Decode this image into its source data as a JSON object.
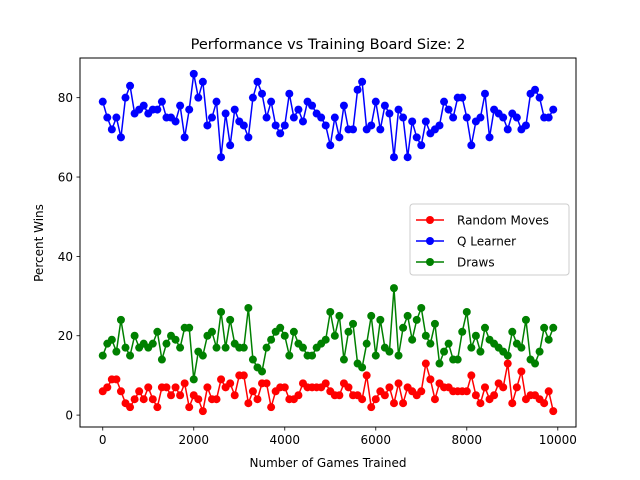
{
  "chart_data": {
    "type": "line",
    "title": "Performance vs Training Board Size: 2",
    "xlabel": "Number of Games Trained",
    "ylabel": "Percent Wins",
    "xlim": [
      -500,
      10400
    ],
    "ylim": [
      -3,
      90
    ],
    "xticks": [
      0,
      2000,
      4000,
      6000,
      8000,
      10000
    ],
    "yticks": [
      0,
      20,
      40,
      60,
      80
    ],
    "grid": false,
    "legend_position": "center-right",
    "x": [
      0,
      100,
      200,
      300,
      400,
      500,
      600,
      700,
      800,
      900,
      1000,
      1100,
      1200,
      1300,
      1400,
      1500,
      1600,
      1700,
      1800,
      1900,
      2000,
      2100,
      2200,
      2300,
      2400,
      2500,
      2600,
      2700,
      2800,
      2900,
      3000,
      3100,
      3200,
      3300,
      3400,
      3500,
      3600,
      3700,
      3800,
      3900,
      4000,
      4100,
      4200,
      4300,
      4400,
      4500,
      4600,
      4700,
      4800,
      4900,
      5000,
      5100,
      5200,
      5300,
      5400,
      5500,
      5600,
      5700,
      5800,
      5900,
      6000,
      6100,
      6200,
      6300,
      6400,
      6500,
      6600,
      6700,
      6800,
      6900,
      7000,
      7100,
      7200,
      7300,
      7400,
      7500,
      7600,
      7700,
      7800,
      7900,
      8000,
      8100,
      8200,
      8300,
      8400,
      8500,
      8600,
      8700,
      8800,
      8900,
      9000,
      9100,
      9200,
      9300,
      9400,
      9500,
      9600,
      9700,
      9800,
      9900
    ],
    "series": [
      {
        "name": "Random Moves",
        "color": "#ff0000",
        "values": [
          6,
          7,
          9,
          9,
          6,
          3,
          2,
          4,
          6,
          4,
          7,
          4,
          2,
          7,
          7,
          5,
          7,
          5,
          8,
          2,
          5,
          4,
          1,
          7,
          4,
          4,
          9,
          7,
          8,
          5,
          10,
          10,
          3,
          6,
          4,
          8,
          8,
          2,
          6,
          7,
          7,
          4,
          4,
          5,
          8,
          7,
          7,
          7,
          7,
          8,
          6,
          5,
          5,
          8,
          7,
          5,
          5,
          4,
          10,
          2,
          4,
          6,
          5,
          7,
          3,
          8,
          3,
          7,
          6,
          5,
          6,
          13,
          9,
          4,
          8,
          7,
          7,
          6,
          6,
          6,
          6,
          10,
          5,
          3,
          7,
          4,
          5,
          8,
          7,
          13,
          3,
          7,
          11,
          4,
          5,
          5,
          4,
          3,
          6,
          1
        ]
      },
      {
        "name": "Q Learner",
        "color": "#0000ff",
        "values": [
          79,
          75,
          72,
          75,
          70,
          80,
          83,
          76,
          77,
          78,
          76,
          77,
          77,
          79,
          75,
          75,
          74,
          78,
          70,
          77,
          86,
          80,
          84,
          73,
          75,
          79,
          65,
          76,
          68,
          77,
          74,
          73,
          70,
          80,
          84,
          81,
          75,
          79,
          73,
          71,
          73,
          81,
          75,
          77,
          74,
          79,
          78,
          76,
          75,
          73,
          68,
          75,
          70,
          78,
          72,
          72,
          82,
          84,
          72,
          73,
          79,
          72,
          78,
          76,
          65,
          77,
          75,
          65,
          74,
          70,
          68,
          74,
          71,
          72,
          73,
          79,
          77,
          75,
          80,
          80,
          75,
          68,
          74,
          75,
          81,
          70,
          77,
          76,
          75,
          72,
          76,
          75,
          72,
          73,
          81,
          82,
          80,
          75,
          75,
          77
        ]
      },
      {
        "name": "Draws",
        "color": "#008000",
        "values": [
          15,
          18,
          19,
          16,
          24,
          17,
          15,
          20,
          17,
          18,
          17,
          18,
          21,
          14,
          18,
          20,
          19,
          17,
          22,
          22,
          9,
          16,
          15,
          20,
          21,
          17,
          26,
          17,
          24,
          18,
          17,
          17,
          27,
          14,
          12,
          11,
          17,
          19,
          21,
          22,
          20,
          15,
          21,
          18,
          17,
          15,
          15,
          17,
          18,
          19,
          26,
          20,
          25,
          14,
          21,
          23,
          13,
          12,
          18,
          25,
          15,
          24,
          17,
          16,
          32,
          15,
          22,
          25,
          19,
          24,
          27,
          20,
          18,
          23,
          13,
          16,
          18,
          14,
          14,
          21,
          26,
          17,
          20,
          16,
          22,
          19,
          18,
          17,
          16,
          15,
          21,
          18,
          17,
          24,
          14,
          13,
          16,
          22,
          19,
          22
        ]
      }
    ]
  }
}
